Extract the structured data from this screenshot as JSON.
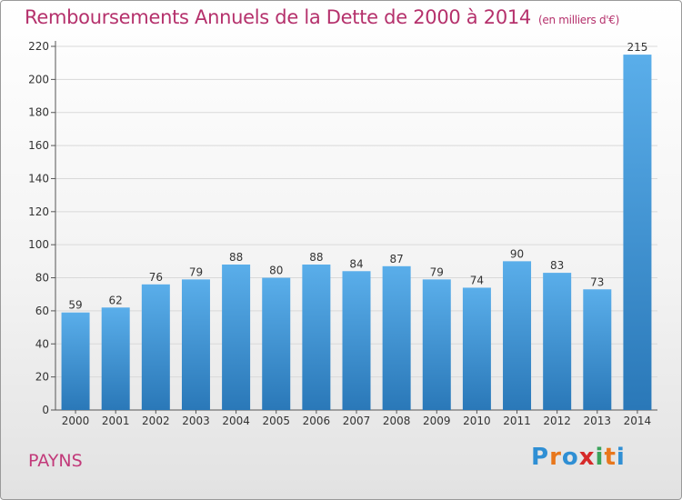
{
  "title": "Remboursements Annuels de la Dette de 2000 à 2014",
  "unit": "(en milliers d'€)",
  "commune": "PAYNS",
  "logo": {
    "letters": [
      "P",
      "r",
      "o",
      "x",
      "i",
      "t",
      "i"
    ],
    "colors": [
      "#2f8fd4",
      "#e8771c",
      "#2f8fd4",
      "#d62a2a",
      "#3aa35a",
      "#e8771c",
      "#2f8fd4"
    ]
  },
  "chart_data": {
    "type": "bar",
    "categories": [
      "2000",
      "2001",
      "2002",
      "2003",
      "2004",
      "2005",
      "2006",
      "2007",
      "2008",
      "2009",
      "2010",
      "2011",
      "2012",
      "2013",
      "2014"
    ],
    "values": [
      59,
      62,
      76,
      79,
      88,
      80,
      88,
      84,
      87,
      79,
      74,
      90,
      83,
      73,
      215
    ],
    "ylim": [
      0,
      220
    ],
    "yticks": [
      0,
      20,
      40,
      60,
      80,
      100,
      120,
      140,
      160,
      180,
      200,
      220
    ],
    "grid": true,
    "bar_color_top": "#5aaeea",
    "bar_color_bottom": "#2a78b8"
  }
}
